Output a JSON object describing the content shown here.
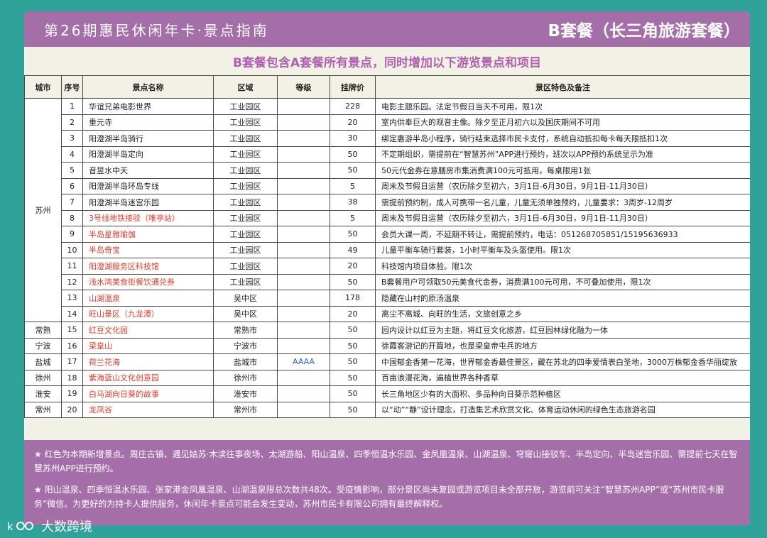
{
  "header": {
    "left_title": "第26期惠民休闲年卡·景点指南",
    "right_title": "B套餐（长三角旅游套餐）"
  },
  "subtitle": "B套餐包含A套餐所有景点，同时增加以下游览景点和项目",
  "table": {
    "columns": [
      "城市",
      "序号",
      "景点名称",
      "区域",
      "等级",
      "挂牌价",
      "景区特色及备注"
    ],
    "rows": [
      {
        "city": "苏州",
        "no": "1",
        "name": "华谊兄弟电影世界",
        "area": "工业园区",
        "level": "",
        "price": "228",
        "note": "电影主题乐园。法定节假日当天不可用，限1次",
        "red": false
      },
      {
        "city": "",
        "no": "2",
        "name": "重元寺",
        "area": "工业园区",
        "level": "",
        "price": "20",
        "note": "室内供奉巨大的观音主像。除夕至正月初六以及国庆期间不可用",
        "red": false
      },
      {
        "city": "",
        "no": "3",
        "name": "阳澄湖半岛骑行",
        "area": "工业园区",
        "level": "",
        "price": "30",
        "note": "绑定惠游半岛小程序，骑行结束选择市民卡支付，系统自动抵扣每卡每天限抵扣1次",
        "red": false
      },
      {
        "city": "",
        "no": "4",
        "name": "阳澄湖半岛定向",
        "area": "工业园区",
        "level": "",
        "price": "50",
        "note": "不定期组织，需提前在“智慧苏州”APP进行预约，班次以APP预约系统显示为准",
        "red": false
      },
      {
        "city": "",
        "no": "5",
        "name": "音昱水中天",
        "area": "工业园区",
        "level": "",
        "price": "50",
        "note": "50元代金券在意膳房市集消费满100元可抵用，每桌限用1张",
        "red": false
      },
      {
        "city": "",
        "no": "6",
        "name": "阳澄湖半岛环岛专线",
        "area": "工业园区",
        "level": "",
        "price": "5",
        "note": "周末及节假日运营（农历除夕至初六，3月1日-6月30日，9月1日-11月30日）",
        "red": false
      },
      {
        "city": "",
        "no": "7",
        "name": "阳澄湖半岛迷宫乐园",
        "area": "工业园区",
        "level": "",
        "price": "38",
        "note": "需提前预约制，成人可携带一名儿童，儿童无须单独预约，儿童要求：3周岁-12周岁",
        "red": false
      },
      {
        "city": "",
        "no": "8",
        "name": "3号线地铁接驳（唯亭站）",
        "area": "工业园区",
        "level": "",
        "price": "5",
        "note": "周末及节假日运营（农历除夕至初六，3月1日-6月30日，9月1日-11月30日）",
        "red": true
      },
      {
        "city": "",
        "no": "9",
        "name": "半岛星雅瑜伽",
        "area": "工业园区",
        "level": "",
        "price": "50",
        "note": "会员大课一周，不延期不转让，需提前预约，电话：051268705851/15195636933",
        "red": true
      },
      {
        "city": "",
        "no": "10",
        "name": "半岛奇宝",
        "area": "工业园区",
        "level": "",
        "price": "49",
        "note": "儿童平衡车骑行套装，1小时平衡车及头盔使用。限1次",
        "red": true
      },
      {
        "city": "",
        "no": "11",
        "name": "阳澄湖服务区科技馆",
        "area": "工业园区",
        "level": "",
        "price": "20",
        "note": "科技馆内项目体验。限1次",
        "red": true
      },
      {
        "city": "",
        "no": "12",
        "name": "浅水湾美食街餐饮通兑券",
        "area": "工业园区",
        "level": "",
        "price": "50",
        "note": "B套餐用户可领取50元美食代金券，消费满100元可用，不可叠加使用，限1次",
        "red": true
      },
      {
        "city": "",
        "no": "13",
        "name": "山湖温泉",
        "area": "吴中区",
        "level": "",
        "price": "178",
        "note": "隐藏在山村的原汤温泉",
        "red": true
      },
      {
        "city": "",
        "no": "14",
        "name": "旺山景区（九龙潭）",
        "area": "吴中区",
        "level": "",
        "price": "20",
        "note": "离尘不离城、向旺的生活，文旅创意之乡",
        "red": true
      },
      {
        "city": "常熟",
        "no": "15",
        "name": "红豆文化园",
        "area": "常熟市",
        "level": "",
        "price": "50",
        "note": "园内设计以红豆为主题，将红豆文化旅游，红豆园林绿化融为一体",
        "red": true
      },
      {
        "city": "宁波",
        "no": "16",
        "name": "梁皇山",
        "area": "宁波市",
        "level": "",
        "price": "50",
        "note": "徐霞客游记的开篇地，也是梁皇帝屯兵的地方",
        "red": true
      },
      {
        "city": "盐城",
        "no": "17",
        "name": "荷兰花海",
        "area": "盐城市",
        "level": "AAAA",
        "price": "50",
        "note": "中国郁金香第一花海，世界郁金香最佳景区，藏在苏北的四季爱情表白圣地，3000万株郁金香华丽绽放",
        "red": true
      },
      {
        "city": "徐州",
        "no": "18",
        "name": "紫海蓝山文化创意园",
        "area": "徐州市",
        "level": "",
        "price": "50",
        "note": "百亩浪漫花海，遍植世界各种香草",
        "red": true
      },
      {
        "city": "淮安",
        "no": "19",
        "name": "白马湖向日葵的故事",
        "area": "淮安市",
        "level": "",
        "price": "50",
        "note": "长三角地区少有的大面积、多品种向日葵示范种植区",
        "red": true
      },
      {
        "city": "常州",
        "no": "20",
        "name": "龙凤谷",
        "area": "常州市",
        "level": "",
        "price": "50",
        "note": "以“动”“静”设计理念，打造集艺术欣赏文化、体育运动休闲的绿色生态旅游名园",
        "red": true
      }
    ]
  },
  "notes": [
    "★ 红色为本期新增景点。周庄古镇、遇见姑苏·木渎往事夜场、太湖游船、阳山温泉、四季恒温水乐园、金凤凰温泉、山湖温泉、穹窿山接驳车、半岛定向、半岛迷宫乐园、需提前七天在智慧苏州APP进行预约。",
    "★ 阳山温泉、四季恒温水乐园、张家港金凤凰温泉、山湖温泉限总次数共48次。受疫情影响，部分景区尚未复园或游览项目未全部开放，游览前可关注“智慧苏州APP”或“苏州市民卡服务”微信。为更好的为持卡人提供服务，休闲年卡景点可能会发生变动，苏州市民卡有限公司拥有最终解释权。"
  ],
  "watermark": "大数跨境",
  "colors": {
    "background": "#2fa39a",
    "header": "#a46fa8",
    "subtitle": "#b060b0",
    "new_item_red": "#e23b2a",
    "level_blue": "#2b63c9"
  }
}
